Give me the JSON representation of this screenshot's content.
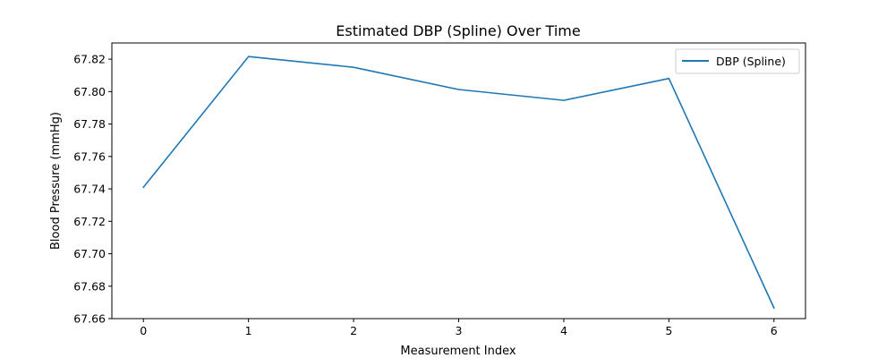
{
  "chart_data": {
    "type": "line",
    "title": "Estimated DBP (Spline) Over Time",
    "xlabel": "Measurement Index",
    "ylabel": "Blood Pressure (mmHg)",
    "xlim": [
      -0.3,
      6.3
    ],
    "ylim": [
      67.66,
      67.83
    ],
    "xticks": [
      0,
      1,
      2,
      3,
      4,
      5,
      6
    ],
    "xtick_labels": [
      "0",
      "1",
      "2",
      "3",
      "4",
      "5",
      "6"
    ],
    "yticks": [
      67.66,
      67.68,
      67.7,
      67.72,
      67.74,
      67.76,
      67.78,
      67.8,
      67.82
    ],
    "ytick_labels": [
      "67.66",
      "67.68",
      "67.70",
      "67.72",
      "67.74",
      "67.76",
      "67.78",
      "67.80",
      "67.82"
    ],
    "grid": false,
    "legend_position": "top-right",
    "series": [
      {
        "name": "DBP (Spline)",
        "color": "#1f77b4",
        "x": [
          0,
          1,
          2,
          3,
          4,
          5,
          6
        ],
        "y": [
          67.741,
          67.8216,
          67.815,
          67.8013,
          67.7946,
          67.8081,
          67.6666
        ]
      }
    ]
  }
}
